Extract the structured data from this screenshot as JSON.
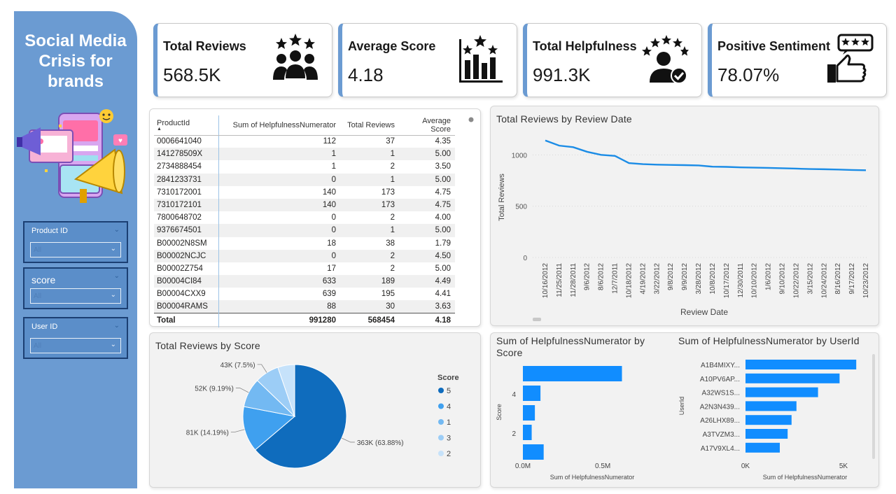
{
  "sidebar": {
    "title": "Social Media\nCrisis for\nbrands",
    "slicers": [
      {
        "label": "Product ID",
        "value": "All"
      },
      {
        "label": "score",
        "value": "All"
      },
      {
        "label": "User ID",
        "value": "All"
      }
    ]
  },
  "kpis": [
    {
      "label": "Total Reviews",
      "value": "568.5K",
      "icon": "users-stars-icon"
    },
    {
      "label": "Average Score",
      "value": "4.18",
      "icon": "bar-chart-stars-icon"
    },
    {
      "label": "Total Helpfulness",
      "value": "991.3K",
      "icon": "user-check-stars-icon"
    },
    {
      "label": "Positive Sentiment",
      "value": "78.07%",
      "icon": "thumbs-up-stars-icon"
    }
  ],
  "colors": {
    "accent": "#6b9bd2",
    "bar": "#118dff",
    "pie": [
      "#0f6cbd",
      "#3fa0ef",
      "#73b9f2",
      "#9ccdf6",
      "#c6e2fa"
    ]
  },
  "table": {
    "columns": [
      "ProductId",
      "Sum of HelpfulnessNumerator",
      "Total Reviews",
      "Average Score"
    ],
    "rows": [
      [
        "0006641040",
        "112",
        "37",
        "4.35"
      ],
      [
        "141278509X",
        "1",
        "1",
        "5.00"
      ],
      [
        "2734888454",
        "1",
        "2",
        "3.50"
      ],
      [
        "2841233731",
        "0",
        "1",
        "5.00"
      ],
      [
        "7310172001",
        "140",
        "173",
        "4.75"
      ],
      [
        "7310172101",
        "140",
        "173",
        "4.75"
      ],
      [
        "7800648702",
        "0",
        "2",
        "4.00"
      ],
      [
        "9376674501",
        "0",
        "1",
        "5.00"
      ],
      [
        "B00002N8SM",
        "18",
        "38",
        "1.79"
      ],
      [
        "B00002NCJC",
        "0",
        "2",
        "4.50"
      ],
      [
        "B00002Z754",
        "17",
        "2",
        "5.00"
      ],
      [
        "B00004CI84",
        "633",
        "189",
        "4.49"
      ],
      [
        "B00004CXX9",
        "639",
        "195",
        "4.41"
      ],
      [
        "B00004RAMS",
        "88",
        "30",
        "3.63"
      ]
    ],
    "total": [
      "Total",
      "991280",
      "568454",
      "4.18"
    ]
  },
  "chart_data": [
    {
      "type": "line",
      "title": "Total Reviews by Review Date",
      "xlabel": "Review Date",
      "ylabel": "Total Reviews",
      "ylim": [
        0,
        1200
      ],
      "yticks": [
        0,
        500,
        1000
      ],
      "x": [
        "10/16/2012",
        "11/25/2011",
        "11/28/2011",
        "9/6/2012",
        "8/6/2012",
        "12/7/2011",
        "10/18/2012",
        "4/19/2012",
        "3/22/2012",
        "9/8/2012",
        "9/9/2012",
        "3/28/2012",
        "10/8/2012",
        "10/17/2012",
        "12/30/2011",
        "10/10/2012",
        "1/6/2012",
        "9/10/2012",
        "10/22/2012",
        "3/15/2012",
        "10/24/2012",
        "8/16/2012",
        "9/17/2012",
        "10/23/2012"
      ],
      "y": [
        1140,
        1090,
        1075,
        1030,
        1000,
        990,
        920,
        910,
        905,
        902,
        900,
        897,
        885,
        883,
        878,
        876,
        873,
        870,
        866,
        862,
        860,
        857,
        853,
        850
      ],
      "grid": true
    },
    {
      "type": "pie",
      "title": "Total Reviews by Score",
      "legend_title": "Score",
      "legend": [
        "5",
        "4",
        "1",
        "3",
        "2"
      ],
      "values": [
        363000,
        81000,
        52000,
        43000,
        30000
      ],
      "labels": [
        "363K (63.88%)",
        "81K (14.19%)",
        "52K (9.19%)",
        "43K (7.5%)",
        ""
      ]
    },
    {
      "type": "bar",
      "title": "Sum of HelpfulnessNumerator by Score",
      "xlabel": "Sum of HelpfulnessNumerator",
      "ylabel": "Score",
      "orientation": "horizontal",
      "categories": [
        "5",
        "4",
        "3",
        "2",
        "1"
      ],
      "values": [
        620000,
        110000,
        75000,
        55000,
        130000
      ],
      "xticks": [
        "0.0M",
        "0.5M"
      ],
      "xlim": [
        0,
        850000
      ],
      "ytick_labels": [
        "4",
        "2"
      ]
    },
    {
      "type": "bar",
      "title": "Sum of HelpfulnessNumerator by UserId",
      "xlabel": "Sum of HelpfulnessNumerator",
      "ylabel": "UserId",
      "orientation": "horizontal",
      "categories": [
        "A1B4MIXY...",
        "A10PV6AP...",
        "A32WS1S...",
        "A2N3N439...",
        "A26LHX89...",
        "A3TVZM3...",
        "A17V9XL4..."
      ],
      "values": [
        5650,
        4800,
        3700,
        2600,
        2350,
        2150,
        1750
      ],
      "xticks": [
        "0K",
        "5K"
      ],
      "xlim": [
        0,
        6000
      ]
    }
  ]
}
